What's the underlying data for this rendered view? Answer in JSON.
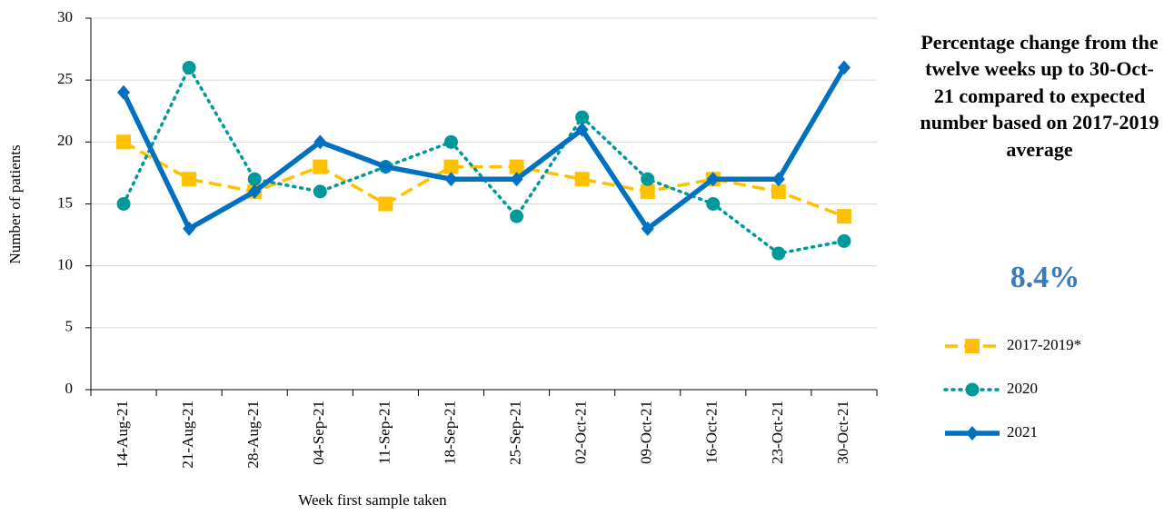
{
  "chart_data": {
    "type": "line",
    "x_label": "Week first sample taken",
    "y_label": "Number of patients",
    "categories": [
      "14-Aug-21",
      "21-Aug-21",
      "28-Aug-21",
      "04-Sep-21",
      "11-Sep-21",
      "18-Sep-21",
      "25-Sep-21",
      "02-Oct-21",
      "09-Oct-21",
      "16-Oct-21",
      "23-Oct-21",
      "30-Oct-21"
    ],
    "series": [
      {
        "name": "2017-2019*",
        "color": "#ffc000",
        "dash": "dashed",
        "marker": "square",
        "values": [
          20,
          17,
          16,
          18,
          15,
          18,
          18,
          17,
          16,
          17,
          16,
          14
        ]
      },
      {
        "name": "2020",
        "color": "#009999",
        "dash": "dotted",
        "marker": "circle",
        "values": [
          15,
          26,
          17,
          16,
          18,
          20,
          14,
          22,
          17,
          15,
          11,
          12
        ]
      },
      {
        "name": "2021",
        "color": "#0070c0",
        "dash": "solid",
        "marker": "diamond",
        "values": [
          24,
          13,
          16,
          20,
          18,
          17,
          17,
          21,
          13,
          17,
          17,
          26
        ]
      }
    ],
    "ylim": [
      0,
      30
    ],
    "yticks": [
      0,
      5,
      10,
      15,
      20,
      25,
      30
    ],
    "grid": true,
    "annotation": "Percentage change from the twelve weeks up to 30-Oct-21 compared to expected number based on 2017-2019 average",
    "headline": "8.4%",
    "legend": "right"
  }
}
